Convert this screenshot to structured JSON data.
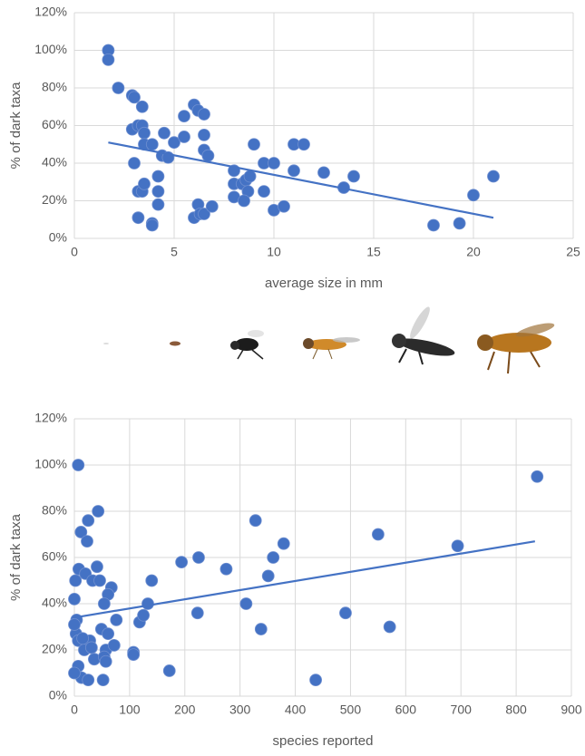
{
  "chart_data": [
    {
      "type": "scatter",
      "x_label": "average size in mm",
      "y_label": "% of dark taxa",
      "color": "#4472c4",
      "grid": true,
      "xlim": [
        0,
        25
      ],
      "xticks": [
        0,
        5,
        10,
        15,
        20,
        25
      ],
      "ylim": [
        0,
        120
      ],
      "yticks": [
        {
          "value": 0,
          "label": "0%"
        },
        {
          "value": 20,
          "label": "20%"
        },
        {
          "value": 40,
          "label": "40%"
        },
        {
          "value": 60,
          "label": "60%"
        },
        {
          "value": 80,
          "label": "80%"
        },
        {
          "value": 100,
          "label": "100%"
        },
        {
          "value": 120,
          "label": "120%"
        }
      ],
      "x": [
        1.7,
        1.7,
        2.2,
        2.9,
        3.0,
        2.9,
        3.2,
        3.4,
        3.4,
        3.5,
        3.5,
        3.9,
        3.0,
        3.2,
        3.4,
        3.5,
        3.2,
        3.9,
        3.9,
        4.2,
        4.2,
        4.2,
        4.5,
        4.4,
        4.7,
        5.0,
        5.5,
        5.5,
        6.0,
        6.2,
        6.5,
        6.5,
        6.5,
        6.7,
        6.2,
        6.0,
        6.3,
        6.5,
        6.9,
        8.0,
        8.0,
        8.0,
        8.4,
        8.6,
        8.8,
        8.7,
        8.5,
        9.0,
        9.5,
        9.5,
        10.0,
        10.0,
        10.5,
        11.0,
        11.5,
        11.0,
        12.5,
        14.0,
        13.5,
        18.0,
        19.3,
        20.0,
        21.0
      ],
      "values": [
        100,
        95,
        80,
        76,
        75,
        58,
        60,
        60,
        70,
        56,
        50,
        50,
        40,
        25,
        25,
        29,
        11,
        8,
        7,
        33,
        25,
        18,
        56,
        44,
        43,
        51,
        65,
        54,
        71,
        68,
        66,
        55,
        47,
        44,
        18,
        11,
        13,
        13,
        17,
        36,
        29,
        22,
        29,
        31,
        33,
        25,
        20,
        50,
        40,
        25,
        40,
        15,
        17,
        50,
        50,
        36,
        35,
        33,
        27,
        7,
        8,
        23,
        33
      ],
      "trendline": {
        "x": [
          1.7,
          21.0
        ],
        "values": [
          51,
          11
        ]
      }
    },
    {
      "type": "scatter",
      "x_label": "species reported",
      "y_label": "% of dark taxa",
      "color": "#4472c4",
      "grid": true,
      "xlim": [
        0,
        900
      ],
      "xticks": [
        0,
        100,
        200,
        300,
        400,
        500,
        600,
        700,
        800,
        900
      ],
      "ylim": [
        0,
        120
      ],
      "yticks": [
        {
          "value": 0,
          "label": "0%"
        },
        {
          "value": 20,
          "label": "20%"
        },
        {
          "value": 40,
          "label": "40%"
        },
        {
          "value": 60,
          "label": "60%"
        },
        {
          "value": 80,
          "label": "80%"
        },
        {
          "value": 100,
          "label": "100%"
        },
        {
          "value": 120,
          "label": "120%"
        }
      ],
      "x": [
        7,
        838,
        43,
        12,
        25,
        23,
        2,
        0,
        8,
        20,
        41,
        33,
        46,
        67,
        61,
        54,
        4,
        3,
        7,
        18,
        28,
        31,
        0,
        15,
        36,
        49,
        57,
        61,
        76,
        72,
        54,
        57,
        7,
        13,
        25,
        52,
        0,
        107,
        107,
        118,
        125,
        133,
        140,
        172,
        194,
        225,
        223,
        275,
        311,
        328,
        338,
        351,
        360,
        379,
        437,
        491,
        550,
        571,
        694
      ],
      "values": [
        100,
        95,
        80,
        71,
        76,
        67,
        50,
        42,
        55,
        53,
        56,
        50,
        50,
        47,
        44,
        40,
        33,
        27,
        24,
        20,
        24,
        21,
        31,
        25,
        16,
        29,
        20,
        27,
        33,
        22,
        17,
        15,
        13,
        8,
        7,
        7,
        10,
        19,
        18,
        32,
        35,
        40,
        50,
        11,
        58,
        60,
        36,
        55,
        40,
        76,
        29,
        52,
        60,
        66,
        7,
        36,
        70,
        30,
        65
      ],
      "trendline": {
        "x": [
          0,
          834
        ],
        "values": [
          34,
          67
        ]
      }
    }
  ]
}
